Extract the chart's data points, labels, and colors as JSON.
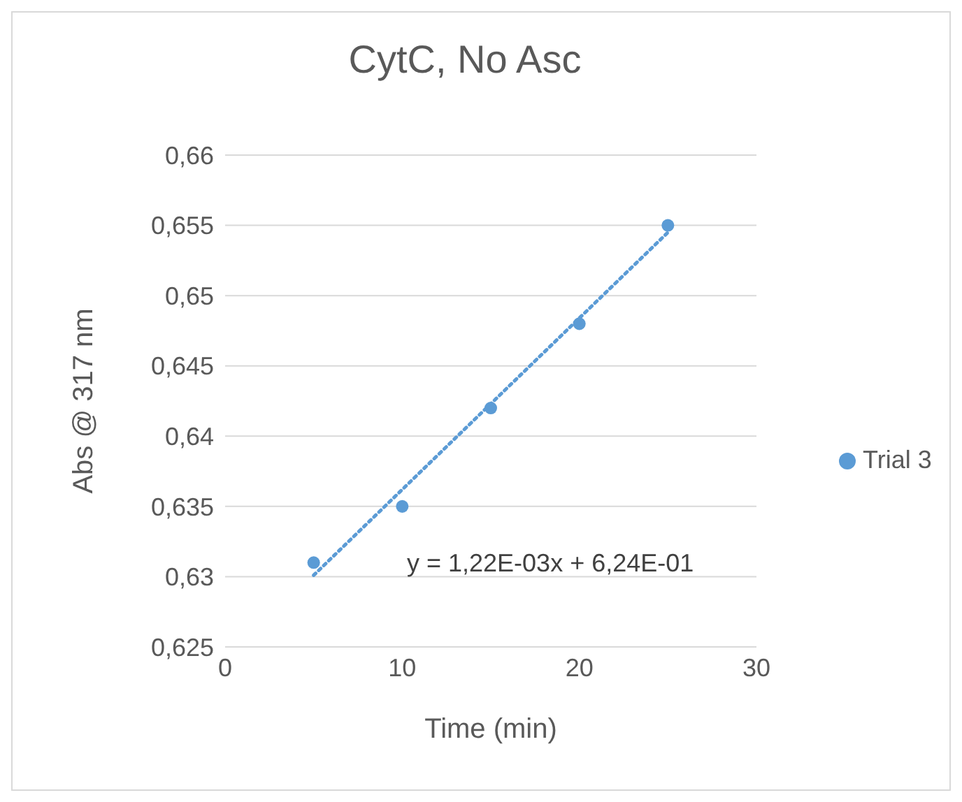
{
  "chart_data": {
    "type": "scatter",
    "title": "CytC, No Asc",
    "xlabel": "Time (min)",
    "ylabel": "Abs @ 317 nm",
    "xlim": [
      0,
      30
    ],
    "xticks": [
      0,
      10,
      20,
      30
    ],
    "ylim": [
      0.625,
      0.66
    ],
    "yticks": [
      {
        "value": 0.625,
        "label": "0,625"
      },
      {
        "value": 0.63,
        "label": "0,63"
      },
      {
        "value": 0.635,
        "label": "0,635"
      },
      {
        "value": 0.64,
        "label": "0,64"
      },
      {
        "value": 0.645,
        "label": "0,645"
      },
      {
        "value": 0.65,
        "label": "0,65"
      },
      {
        "value": 0.655,
        "label": "0,655"
      },
      {
        "value": 0.66,
        "label": "0,66"
      }
    ],
    "grid": "y",
    "legend": "right",
    "marker": "circle",
    "series": [
      {
        "name": "Trial 3",
        "color": "#5b9bd5",
        "x": [
          5,
          10,
          15,
          20,
          25
        ],
        "values": [
          0.631,
          0.635,
          0.642,
          0.648,
          0.655
        ]
      },
      {
        "type": "line",
        "marker": "none",
        "line_style": "dotted",
        "color": "#5b9bd5",
        "x": [
          5,
          25
        ],
        "values": [
          0.6301,
          0.6545
        ]
      }
    ],
    "annotations": [
      "y = 1,22E-03x + 6,24E-01"
    ]
  }
}
